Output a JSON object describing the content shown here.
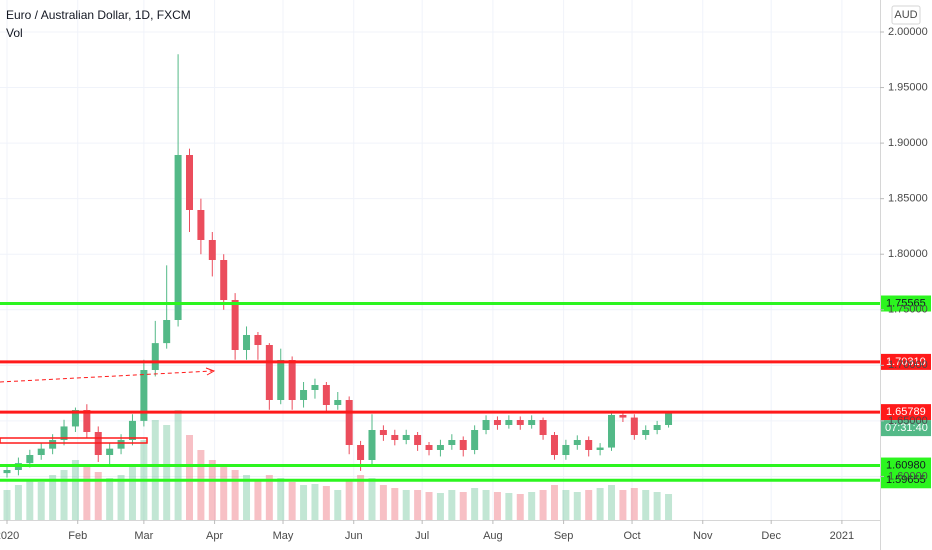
{
  "chart_data": {
    "type": "candlestick",
    "title": "Euro / Australian Dollar, 1D, FXCM",
    "volume_label": "Vol",
    "currency": "AUD",
    "countdown": "07:31:40",
    "up_color": "#53b987",
    "down_color": "#eb4d5c",
    "x": [
      0,
      5,
      10,
      15,
      20,
      25,
      30,
      35,
      40,
      45,
      50,
      55,
      60,
      65,
      70,
      75,
      80,
      85,
      90,
      95,
      100,
      105,
      110,
      115,
      120,
      125,
      130,
      135,
      140,
      145,
      150,
      155,
      160,
      165,
      170,
      175,
      180,
      185,
      190,
      195,
      200,
      205,
      210,
      215,
      220,
      225,
      230,
      235,
      240,
      245,
      250,
      255,
      260,
      265,
      270,
      275,
      280,
      285,
      290
    ],
    "open": [
      1.603,
      1.6058,
      1.612,
      1.6193,
      1.625,
      1.6328,
      1.645,
      1.6598,
      1.64,
      1.6193,
      1.625,
      1.6328,
      1.65,
      1.6958,
      1.72,
      1.7408,
      1.8893,
      1.8398,
      1.8128,
      1.7948,
      1.7588,
      1.7138,
      1.7273,
      1.7183,
      1.6688,
      1.7048,
      1.6688,
      1.6778,
      1.6823,
      1.6643,
      1.6688,
      1.6283,
      1.6148,
      1.6418,
      1.6373,
      1.6328,
      1.6373,
      1.6283,
      1.6238,
      1.6283,
      1.6328,
      1.6238,
      1.6418,
      1.6508,
      1.6463,
      1.6508,
      1.6463,
      1.6508,
      1.6373,
      1.6193,
      1.6283,
      1.6328,
      1.6238,
      1.626,
      1.6553,
      1.653,
      1.6373,
      1.6418,
      1.6463
    ],
    "high": [
      1.61,
      1.617,
      1.624,
      1.63,
      1.638,
      1.651,
      1.662,
      1.665,
      1.645,
      1.63,
      1.638,
      1.656,
      1.705,
      1.74,
      1.79,
      1.98,
      1.895,
      1.85,
      1.82,
      1.8,
      1.765,
      1.735,
      1.73,
      1.72,
      1.715,
      1.708,
      1.685,
      1.688,
      1.685,
      1.676,
      1.672,
      1.632,
      1.656,
      1.646,
      1.642,
      1.642,
      1.64,
      1.631,
      1.633,
      1.638,
      1.636,
      1.646,
      1.655,
      1.654,
      1.655,
      1.654,
      1.655,
      1.653,
      1.64,
      1.633,
      1.637,
      1.636,
      1.63,
      1.659,
      1.658,
      1.656,
      1.646,
      1.65,
      1.659
    ],
    "low": [
      1.599,
      1.601,
      1.608,
      1.615,
      1.62,
      1.628,
      1.64,
      1.635,
      1.613,
      1.611,
      1.62,
      1.628,
      1.645,
      1.69,
      1.715,
      1.735,
      1.82,
      1.8,
      1.78,
      1.75,
      1.705,
      1.705,
      1.705,
      1.66,
      1.665,
      1.66,
      1.662,
      1.67,
      1.658,
      1.66,
      1.62,
      1.605,
      1.61,
      1.632,
      1.628,
      1.629,
      1.623,
      1.619,
      1.618,
      1.624,
      1.618,
      1.62,
      1.638,
      1.642,
      1.643,
      1.642,
      1.643,
      1.633,
      1.615,
      1.615,
      1.624,
      1.618,
      1.619,
      1.623,
      1.649,
      1.633,
      1.633,
      1.638,
      1.644
    ],
    "close": [
      1.6058,
      1.612,
      1.6193,
      1.625,
      1.6328,
      1.645,
      1.6598,
      1.64,
      1.6193,
      1.625,
      1.6328,
      1.65,
      1.6958,
      1.72,
      1.7408,
      1.8893,
      1.8398,
      1.8128,
      1.7948,
      1.7588,
      1.7138,
      1.7273,
      1.7183,
      1.6688,
      1.7048,
      1.6688,
      1.6778,
      1.6823,
      1.6643,
      1.6688,
      1.6283,
      1.6148,
      1.6418,
      1.6373,
      1.6328,
      1.6373,
      1.6283,
      1.6238,
      1.6283,
      1.6328,
      1.6238,
      1.6418,
      1.6508,
      1.6463,
      1.6508,
      1.6463,
      1.6508,
      1.6373,
      1.6193,
      1.6283,
      1.6328,
      1.6238,
      1.626,
      1.6553,
      1.653,
      1.6373,
      1.6418,
      1.6463,
      1.6579
    ],
    "volume": [
      30,
      35,
      40,
      38,
      45,
      50,
      60,
      55,
      48,
      42,
      45,
      55,
      80,
      100,
      95,
      110,
      85,
      70,
      60,
      55,
      50,
      45,
      40,
      45,
      42,
      38,
      35,
      36,
      34,
      30,
      40,
      45,
      42,
      35,
      32,
      30,
      30,
      28,
      27,
      30,
      28,
      32,
      30,
      28,
      27,
      26,
      28,
      30,
      35,
      30,
      28,
      30,
      32,
      35,
      30,
      32,
      30,
      28,
      26
    ],
    "xlim": [
      -3.07,
      382.7
    ],
    "ylim": [
      1.5608,
      2.0288
    ],
    "xticks": [
      {
        "value": 0,
        "label": "2020"
      },
      {
        "value": 31,
        "label": "Feb"
      },
      {
        "value": 60,
        "label": "Mar"
      },
      {
        "value": 91,
        "label": "Apr"
      },
      {
        "value": 121,
        "label": "May"
      },
      {
        "value": 152,
        "label": "Jun"
      },
      {
        "value": 182,
        "label": "Jul"
      },
      {
        "value": 213,
        "label": "Aug"
      },
      {
        "value": 244,
        "label": "Sep"
      },
      {
        "value": 274,
        "label": "Oct"
      },
      {
        "value": 305,
        "label": "Nov"
      },
      {
        "value": 335,
        "label": "Dec"
      },
      {
        "value": 366,
        "label": "2021"
      }
    ],
    "yticks": [
      {
        "value": 1.6,
        "label": "1.60000"
      },
      {
        "value": 1.65,
        "label": "1.65000"
      },
      {
        "value": 1.7,
        "label": "1.70000"
      },
      {
        "value": 1.75,
        "label": "1.75000"
      },
      {
        "value": 1.8,
        "label": "1.80000"
      },
      {
        "value": 1.85,
        "label": "1.85000"
      },
      {
        "value": 1.9,
        "label": "1.90000"
      },
      {
        "value": 1.95,
        "label": "1.95000"
      },
      {
        "value": 2,
        "label": "2.00000"
      }
    ],
    "levels": [
      {
        "value": 1.75565,
        "label": "1.75565",
        "color": "#2cf51f"
      },
      {
        "value": 1.7031,
        "label": "1.70310",
        "color": "#ff1a1a"
      },
      {
        "value": 1.65789,
        "label": "1.65789",
        "color": "#ff1a1a"
      },
      {
        "value": 1.6098,
        "label": "1.60980",
        "color": "#2cf51f"
      },
      {
        "value": 1.59655,
        "label": "1.59655",
        "color": "#2cf51f"
      }
    ],
    "grid": true
  }
}
